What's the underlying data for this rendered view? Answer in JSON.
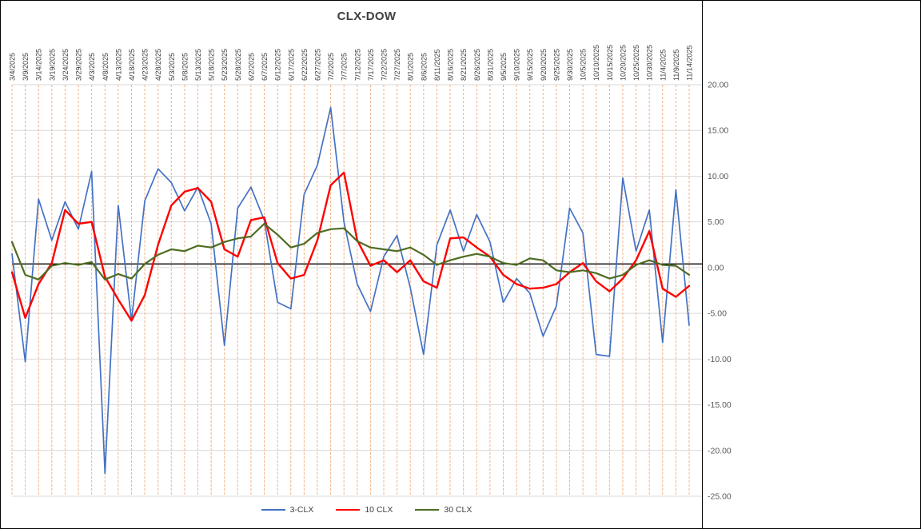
{
  "window": {
    "background_color": "#FFFFFF",
    "border_color": "#000000"
  },
  "chart_data": {
    "type": "line",
    "title": "CLX-DOW",
    "xlabel": "",
    "ylabel": "",
    "ylim": [
      -25,
      20
    ],
    "ytick_labels": [
      "20.00",
      "15.00",
      "10.00",
      "5.00",
      "0.00",
      "-5.00",
      "-10.00",
      "-15.00",
      "-20.00",
      "-25.00"
    ],
    "legend_position": "bottom",
    "grid": {
      "vertical_color": "#F4B183",
      "vertical_style": "dashed",
      "horizontal_color": "#D9D9D9"
    },
    "axis_label_color": "#595959",
    "date_label_color": "#404040",
    "title_color": "#404040",
    "baseline": {
      "value": 0.4,
      "color": "#000000"
    },
    "categories": [
      "3/4/2025",
      "3/9/2025",
      "3/14/2025",
      "3/19/2025",
      "3/24/2025",
      "3/29/2025",
      "4/3/2025",
      "4/8/2025",
      "4/13/2025",
      "4/18/2025",
      "4/23/2025",
      "4/28/2025",
      "5/3/2025",
      "5/8/2025",
      "5/13/2025",
      "5/18/2025",
      "5/23/2025",
      "5/28/2025",
      "6/2/2025",
      "6/7/2025",
      "6/12/2025",
      "6/17/2025",
      "6/22/2025",
      "6/27/2025",
      "7/2/2025",
      "7/7/2025",
      "7/12/2025",
      "7/17/2025",
      "7/22/2025",
      "7/27/2025",
      "8/1/2025",
      "8/6/2025",
      "8/11/2025",
      "8/16/2025",
      "8/21/2025",
      "8/26/2025",
      "8/31/2025",
      "9/5/2025",
      "9/10/2025",
      "9/15/2025",
      "9/20/2025",
      "9/25/2025",
      "9/30/2025",
      "10/5/2025",
      "10/10/2025",
      "10/15/2025",
      "10/20/2025",
      "10/25/2025",
      "10/30/2025",
      "11/4/2025",
      "11/9/2025",
      "11/14/2025"
    ],
    "series": [
      {
        "name": "3-CLX",
        "color": "#4472C4",
        "stroke_width": 1.7,
        "values": [
          1.5,
          -10.3,
          7.5,
          3.0,
          7.2,
          4.2,
          10.5,
          -22.5,
          6.8,
          -5.8,
          7.3,
          10.8,
          9.3,
          6.2,
          8.8,
          4.8,
          -8.5,
          6.5,
          8.8,
          5.2,
          -3.8,
          -4.5,
          8.0,
          11.2,
          17.5,
          5.0,
          -1.8,
          -4.8,
          1.2,
          3.5,
          -2.2,
          -9.5,
          2.5,
          6.3,
          1.8,
          5.8,
          2.8,
          -3.8,
          -1.2,
          -2.8,
          -7.5,
          -4.2,
          6.5,
          3.8,
          -9.5,
          -9.7,
          9.8,
          1.8,
          6.3,
          -8.2,
          8.5,
          -6.3
        ]
      },
      {
        "name": "10 CLX",
        "color": "#FF0000",
        "stroke_width": 2.4,
        "values": [
          -0.5,
          -5.5,
          -1.8,
          0.5,
          6.3,
          4.8,
          5.0,
          -1.0,
          -3.5,
          -5.8,
          -3.0,
          2.5,
          6.8,
          8.3,
          8.7,
          7.2,
          2.0,
          1.2,
          5.2,
          5.5,
          0.5,
          -1.2,
          -0.8,
          3.0,
          9.0,
          10.4,
          3.0,
          0.2,
          0.8,
          -0.5,
          0.8,
          -1.5,
          -2.2,
          3.2,
          3.3,
          2.2,
          1.2,
          -0.8,
          -1.8,
          -2.3,
          -2.2,
          -1.8,
          -0.5,
          0.5,
          -1.5,
          -2.6,
          -1.2,
          0.8,
          4.0,
          -2.3,
          -3.2,
          -2.0
        ]
      },
      {
        "name": "30 CLX",
        "color": "#4E6C23",
        "stroke_width": 2.2,
        "values": [
          2.8,
          -0.8,
          -1.3,
          0.2,
          0.5,
          0.3,
          0.6,
          -1.3,
          -0.7,
          -1.2,
          0.4,
          1.4,
          2.0,
          1.8,
          2.4,
          2.2,
          2.8,
          3.2,
          3.4,
          4.8,
          3.6,
          2.2,
          2.6,
          3.8,
          4.2,
          4.3,
          2.9,
          2.2,
          2.0,
          1.8,
          2.2,
          1.4,
          0.3,
          0.8,
          1.2,
          1.5,
          1.2,
          0.5,
          0.3,
          1.0,
          0.8,
          -0.3,
          -0.5,
          -0.3,
          -0.6,
          -1.2,
          -0.8,
          0.3,
          0.8,
          0.3,
          0.2,
          -0.8
        ]
      }
    ]
  }
}
